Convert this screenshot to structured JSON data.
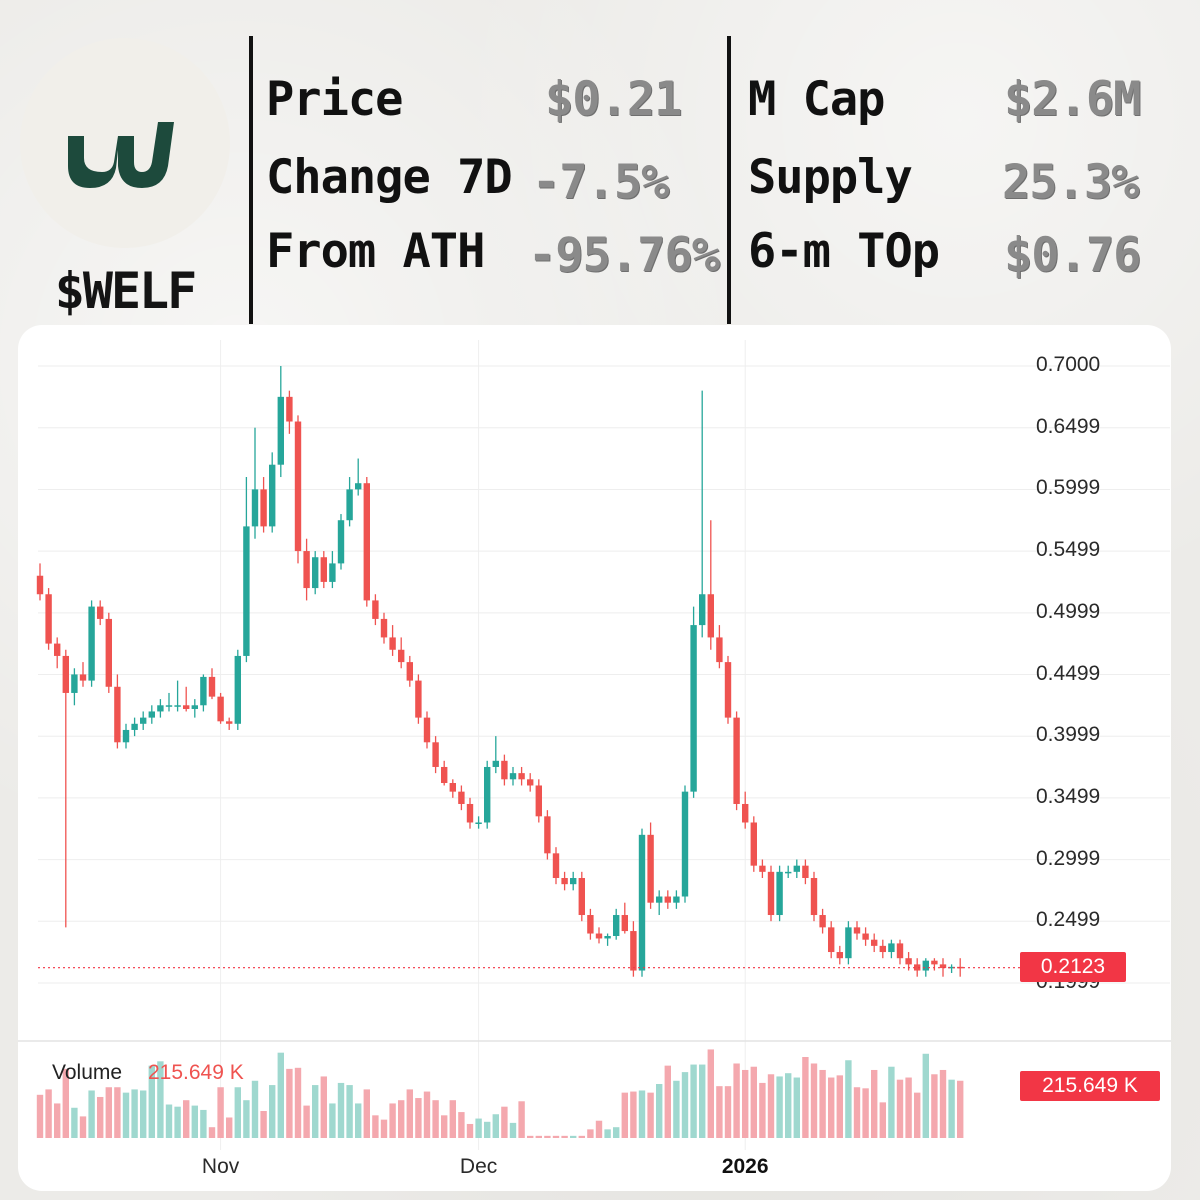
{
  "brand": {
    "ticker": "$WELF",
    "logo_icon": "double-u-logo-icon",
    "logo_color": "#1d4a3c"
  },
  "stats_left": [
    {
      "label": "Price",
      "value": "$0.21"
    },
    {
      "label": "Change 7D",
      "value": "-7.5%"
    },
    {
      "label": "From ATH",
      "value": "-95.76%"
    }
  ],
  "stats_right": [
    {
      "label": "M Cap",
      "value": "$2.6M"
    },
    {
      "label": "Supply",
      "value": "25.3%"
    },
    {
      "label": "6-m TOp",
      "value": "$0.76"
    }
  ],
  "chart_data": {
    "type": "candlestick",
    "colors": {
      "up": "#26a69a",
      "down": "#ef5350",
      "up_volume": "#9fd8cf",
      "down_volume": "#f4a8ae",
      "last_price_line": "#f23645"
    },
    "y_ticks": [
      "0.7000",
      "0.6499",
      "0.5999",
      "0.5499",
      "0.4999",
      "0.4499",
      "0.3999",
      "0.3499",
      "0.2999",
      "0.2499",
      "0.1999"
    ],
    "ylim": [
      0.195,
      0.71
    ],
    "x_tick_labels": [
      {
        "label": "Nov",
        "index": 21,
        "bold": false
      },
      {
        "label": "Dec",
        "index": 51,
        "bold": false
      },
      {
        "label": "2026",
        "index": 82,
        "bold": true
      }
    ],
    "last_price": "0.2123",
    "volume_label": "Volume",
    "volume_value": "215.649 K",
    "volume_badge": "215.649 K",
    "grid": true,
    "candles": [
      [
        0.53,
        0.54,
        0.51,
        0.515,
        4.0
      ],
      [
        0.515,
        0.52,
        0.47,
        0.475,
        4.5
      ],
      [
        0.475,
        0.48,
        0.455,
        0.465,
        3.2
      ],
      [
        0.465,
        0.47,
        0.245,
        0.435,
        6.4
      ],
      [
        0.435,
        0.455,
        0.425,
        0.45,
        2.8
      ],
      [
        0.45,
        0.46,
        0.44,
        0.445,
        2.0
      ],
      [
        0.445,
        0.51,
        0.44,
        0.505,
        4.4
      ],
      [
        0.505,
        0.51,
        0.49,
        0.495,
        3.8
      ],
      [
        0.495,
        0.5,
        0.435,
        0.44,
        4.7
      ],
      [
        0.44,
        0.45,
        0.39,
        0.395,
        4.7
      ],
      [
        0.395,
        0.41,
        0.39,
        0.405,
        4.2
      ],
      [
        0.405,
        0.415,
        0.4,
        0.41,
        4.5
      ],
      [
        0.41,
        0.42,
        0.405,
        0.415,
        4.4
      ],
      [
        0.415,
        0.425,
        0.41,
        0.42,
        6.7
      ],
      [
        0.42,
        0.43,
        0.415,
        0.425,
        7.1
      ],
      [
        0.425,
        0.435,
        0.42,
        0.425,
        3.1
      ],
      [
        0.425,
        0.445,
        0.42,
        0.425,
        2.9
      ],
      [
        0.425,
        0.44,
        0.42,
        0.422,
        3.5
      ],
      [
        0.422,
        0.43,
        0.415,
        0.425,
        3.0
      ],
      [
        0.425,
        0.45,
        0.42,
        0.448,
        2.6
      ],
      [
        0.448,
        0.455,
        0.43,
        0.432,
        1.0
      ],
      [
        0.432,
        0.435,
        0.41,
        0.412,
        4.7
      ],
      [
        0.412,
        0.415,
        0.405,
        0.41,
        1.9
      ],
      [
        0.41,
        0.47,
        0.405,
        0.465,
        4.7
      ],
      [
        0.465,
        0.61,
        0.46,
        0.57,
        3.5
      ],
      [
        0.57,
        0.65,
        0.56,
        0.6,
        5.3
      ],
      [
        0.6,
        0.61,
        0.565,
        0.57,
        2.5
      ],
      [
        0.57,
        0.63,
        0.565,
        0.62,
        4.9
      ],
      [
        0.62,
        0.7,
        0.61,
        0.675,
        7.9
      ],
      [
        0.675,
        0.68,
        0.645,
        0.655,
        6.4
      ],
      [
        0.655,
        0.66,
        0.54,
        0.55,
        6.5
      ],
      [
        0.55,
        0.56,
        0.51,
        0.52,
        3.0
      ],
      [
        0.52,
        0.55,
        0.515,
        0.545,
        4.9
      ],
      [
        0.545,
        0.55,
        0.52,
        0.525,
        5.7
      ],
      [
        0.525,
        0.55,
        0.52,
        0.54,
        3.2
      ],
      [
        0.54,
        0.58,
        0.535,
        0.575,
        5.1
      ],
      [
        0.575,
        0.61,
        0.57,
        0.6,
        4.9
      ],
      [
        0.6,
        0.625,
        0.595,
        0.605,
        3.2
      ],
      [
        0.605,
        0.61,
        0.505,
        0.51,
        4.5
      ],
      [
        0.51,
        0.515,
        0.49,
        0.495,
        2.1
      ],
      [
        0.495,
        0.5,
        0.475,
        0.48,
        1.7
      ],
      [
        0.48,
        0.49,
        0.465,
        0.47,
        3.2
      ],
      [
        0.47,
        0.48,
        0.455,
        0.46,
        3.5
      ],
      [
        0.46,
        0.465,
        0.44,
        0.445,
        4.5
      ],
      [
        0.445,
        0.45,
        0.41,
        0.415,
        3.7
      ],
      [
        0.415,
        0.42,
        0.39,
        0.395,
        4.3
      ],
      [
        0.395,
        0.4,
        0.37,
        0.375,
        3.5
      ],
      [
        0.375,
        0.38,
        0.36,
        0.362,
        2.1
      ],
      [
        0.362,
        0.365,
        0.35,
        0.355,
        3.5
      ],
      [
        0.355,
        0.36,
        0.34,
        0.345,
        2.4
      ],
      [
        0.345,
        0.35,
        0.325,
        0.33,
        1.3
      ],
      [
        0.33,
        0.335,
        0.325,
        0.33,
        1.8
      ],
      [
        0.33,
        0.38,
        0.325,
        0.375,
        1.5
      ],
      [
        0.375,
        0.4,
        0.37,
        0.38,
        2.2
      ],
      [
        0.38,
        0.385,
        0.36,
        0.365,
        2.9
      ],
      [
        0.365,
        0.375,
        0.36,
        0.37,
        1.4
      ],
      [
        0.37,
        0.375,
        0.36,
        0.365,
        3.4
      ],
      [
        0.365,
        0.37,
        0.355,
        0.36,
        0.2
      ],
      [
        0.36,
        0.365,
        0.33,
        0.335,
        0.2
      ],
      [
        0.335,
        0.34,
        0.3,
        0.305,
        0.2
      ],
      [
        0.305,
        0.31,
        0.28,
        0.285,
        0.2
      ],
      [
        0.285,
        0.29,
        0.275,
        0.28,
        0.2
      ],
      [
        0.28,
        0.29,
        0.275,
        0.285,
        0.2
      ],
      [
        0.285,
        0.29,
        0.25,
        0.255,
        0.2
      ],
      [
        0.255,
        0.26,
        0.235,
        0.24,
        0.8
      ],
      [
        0.24,
        0.245,
        0.232,
        0.236,
        1.6
      ],
      [
        0.236,
        0.24,
        0.23,
        0.238,
        0.8
      ],
      [
        0.238,
        0.26,
        0.235,
        0.255,
        1.0
      ],
      [
        0.255,
        0.265,
        0.24,
        0.242,
        4.2
      ],
      [
        0.242,
        0.25,
        0.205,
        0.21,
        4.3
      ],
      [
        0.21,
        0.325,
        0.205,
        0.32,
        4.4
      ],
      [
        0.32,
        0.33,
        0.26,
        0.265,
        4.2
      ],
      [
        0.265,
        0.275,
        0.255,
        0.27,
        5.0
      ],
      [
        0.27,
        0.275,
        0.26,
        0.265,
        6.7
      ],
      [
        0.265,
        0.275,
        0.26,
        0.27,
        5.3
      ],
      [
        0.27,
        0.36,
        0.265,
        0.355,
        6.1
      ],
      [
        0.355,
        0.505,
        0.35,
        0.49,
        6.8
      ],
      [
        0.49,
        0.68,
        0.48,
        0.515,
        6.8
      ],
      [
        0.515,
        0.575,
        0.47,
        0.48,
        8.2
      ],
      [
        0.48,
        0.49,
        0.455,
        0.46,
        4.8
      ],
      [
        0.46,
        0.465,
        0.41,
        0.415,
        4.8
      ],
      [
        0.415,
        0.42,
        0.34,
        0.345,
        6.9
      ],
      [
        0.345,
        0.355,
        0.325,
        0.33,
        6.3
      ],
      [
        0.33,
        0.335,
        0.29,
        0.295,
        6.6
      ],
      [
        0.295,
        0.3,
        0.285,
        0.29,
        5.1
      ],
      [
        0.29,
        0.295,
        0.25,
        0.255,
        5.9
      ],
      [
        0.255,
        0.295,
        0.25,
        0.29,
        5.7
      ],
      [
        0.29,
        0.295,
        0.285,
        0.29,
        6.0
      ],
      [
        0.29,
        0.3,
        0.285,
        0.295,
        5.6
      ],
      [
        0.295,
        0.3,
        0.28,
        0.285,
        7.5
      ],
      [
        0.285,
        0.29,
        0.25,
        0.255,
        6.9
      ],
      [
        0.255,
        0.26,
        0.24,
        0.245,
        6.3
      ],
      [
        0.245,
        0.25,
        0.22,
        0.225,
        5.6
      ],
      [
        0.225,
        0.23,
        0.215,
        0.22,
        5.8
      ],
      [
        0.22,
        0.25,
        0.215,
        0.245,
        7.2
      ],
      [
        0.245,
        0.25,
        0.235,
        0.24,
        4.7
      ],
      [
        0.24,
        0.245,
        0.23,
        0.235,
        4.6
      ],
      [
        0.235,
        0.24,
        0.225,
        0.23,
        6.3
      ],
      [
        0.23,
        0.235,
        0.22,
        0.225,
        3.3
      ],
      [
        0.225,
        0.235,
        0.22,
        0.232,
        6.6
      ],
      [
        0.232,
        0.235,
        0.215,
        0.22,
        5.4
      ],
      [
        0.22,
        0.225,
        0.21,
        0.215,
        5.6
      ],
      [
        0.215,
        0.22,
        0.205,
        0.21,
        4.2
      ],
      [
        0.21,
        0.22,
        0.205,
        0.218,
        7.8
      ],
      [
        0.218,
        0.22,
        0.21,
        0.215,
        5.9
      ],
      [
        0.215,
        0.22,
        0.205,
        0.212,
        6.3
      ],
      [
        0.212,
        0.215,
        0.208,
        0.213,
        5.4
      ],
      [
        0.213,
        0.22,
        0.205,
        0.2123,
        5.3
      ]
    ]
  }
}
